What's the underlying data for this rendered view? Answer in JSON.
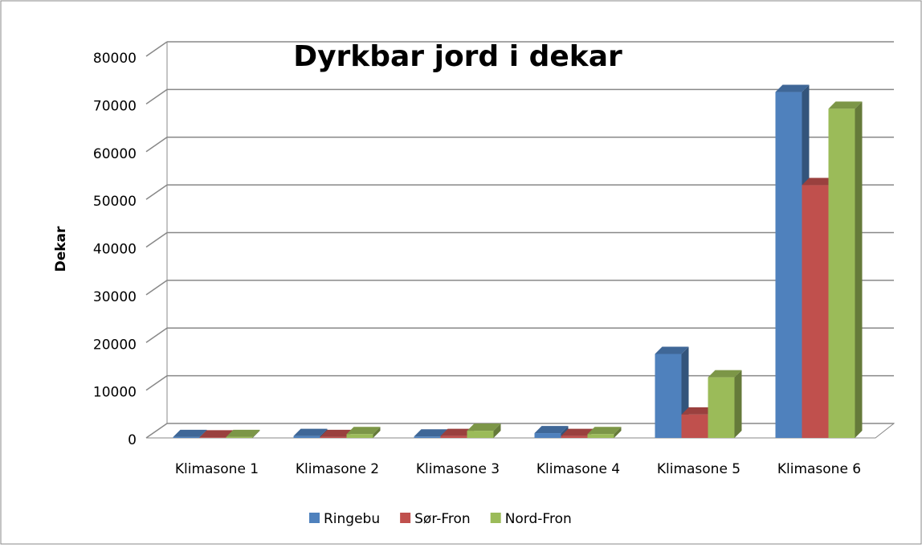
{
  "chart_data": {
    "type": "bar3d",
    "title": "Dyrkbar jord i dekar",
    "y_label": "Dekar",
    "categories": [
      "Klimasone 1",
      "Klimasone 2",
      "Klimasone 3",
      "Klimasone 4",
      "Klimasone 5",
      "Klimasone 6"
    ],
    "series": [
      {
        "name": "Ringebu",
        "color": "#4f81bd",
        "values": [
          200,
          400,
          300,
          1000,
          17600,
          72500
        ]
      },
      {
        "name": "Sør-Fron",
        "color": "#c0504d",
        "values": [
          100,
          200,
          400,
          400,
          4900,
          53000
        ]
      },
      {
        "name": "Nord-Fron",
        "color": "#9bbb59",
        "values": [
          200,
          800,
          1500,
          800,
          12700,
          69000
        ]
      }
    ],
    "ylim": [
      0,
      80000
    ],
    "yticks": [
      0,
      10000,
      20000,
      30000,
      40000,
      50000,
      60000,
      70000,
      80000
    ],
    "grid": true
  }
}
